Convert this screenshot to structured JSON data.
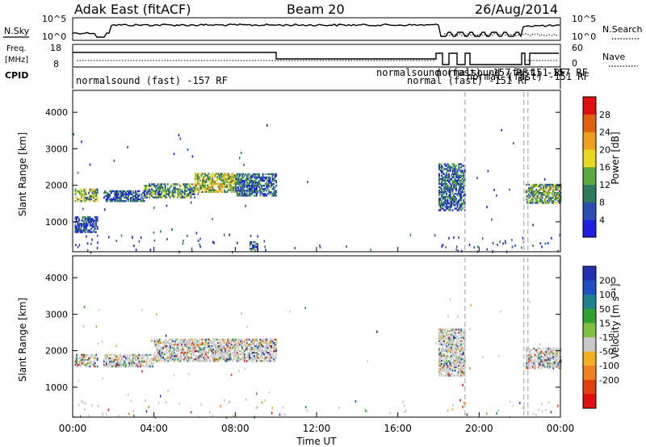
{
  "header": {
    "station": "Adak East (fitACF)",
    "beam": "Beam 20",
    "date": "26/Aug/2014"
  },
  "status_panel": {
    "nsky_label": "N.Sky",
    "nsky_ticks": [
      "10^5",
      "10^0"
    ],
    "nsearch_label": "N.Search",
    "nsearch_ticks": [
      "10^5",
      "10^0"
    ],
    "freq_label": "Freq.",
    "freq_unit": "[MHz]",
    "freq_ticks": [
      "18",
      "8"
    ],
    "nave_label": "Nave",
    "nave_ticks": [
      "60",
      "0"
    ],
    "cpid_label": "CPID",
    "cpid_texts": [
      "normalsound (fast) -157 RF",
      "normalsound (fast) -157 RF",
      "normal (fast) -151 RF",
      "normal (fast) -151 RF",
      "normalsound (fast) -157 RF",
      "-151 RF"
    ]
  },
  "chart_data": [
    {
      "type": "heatmap",
      "panel": "power",
      "ylabel": "Slant Range [km]",
      "colorbar_label": "Power [dB]",
      "x_ticks": [
        "00:00",
        "04:00",
        "08:00",
        "12:00",
        "16:00",
        "20:00",
        "00:00"
      ],
      "y_ticks": [
        "1000",
        "2000",
        "3000",
        "4000"
      ],
      "ylim": [
        180,
        4600
      ],
      "xlim_hours": [
        0,
        24
      ],
      "colorbar_ticks": [
        "4",
        "8",
        "12",
        "16",
        "20",
        "24",
        "28"
      ],
      "colorbar_colors": [
        "#1f1fe0",
        "#2a4fb0",
        "#2e7a5a",
        "#5aa840",
        "#e8d820",
        "#f0a020",
        "#e06010",
        "#e01010"
      ],
      "echo_bands": [
        {
          "t0": 0.1,
          "t1": 1.2,
          "r0": 1550,
          "r1": 1900,
          "level": 0.45
        },
        {
          "t0": 0.1,
          "t1": 1.2,
          "r0": 700,
          "r1": 1150,
          "level": 0.15
        },
        {
          "t0": 1.5,
          "t1": 3.5,
          "r0": 1550,
          "r1": 1850,
          "level": 0.2
        },
        {
          "t0": 3.5,
          "t1": 6.0,
          "r0": 1650,
          "r1": 2050,
          "level": 0.35
        },
        {
          "t0": 6.0,
          "t1": 8.0,
          "r0": 1800,
          "r1": 2300,
          "level": 0.5
        },
        {
          "t0": 8.0,
          "t1": 10.0,
          "r0": 1700,
          "r1": 2300,
          "level": 0.25
        },
        {
          "t0": 8.7,
          "t1": 9.1,
          "r0": 200,
          "r1": 450,
          "level": 0.2
        },
        {
          "t0": 18.0,
          "t1": 19.3,
          "r0": 1300,
          "r1": 2600,
          "level": 0.25
        },
        {
          "t0": 22.3,
          "t1": 24.0,
          "r0": 1500,
          "r1": 2000,
          "level": 0.4
        }
      ]
    },
    {
      "type": "heatmap",
      "panel": "velocity",
      "ylabel": "Slant Range [km]",
      "xlabel": "Time UT",
      "colorbar_label": "Velocity [m s⁻¹]",
      "x_ticks": [
        "00:00",
        "04:00",
        "08:00",
        "12:00",
        "16:00",
        "20:00",
        "00:00"
      ],
      "y_ticks": [
        "1000",
        "2000",
        "3000",
        "4000"
      ],
      "ylim": [
        180,
        4600
      ],
      "colorbar_ticks": [
        "200",
        "100",
        "50",
        "15",
        "-15",
        "-50",
        "-100",
        "-200"
      ],
      "colorbar_colors": [
        "#2030b0",
        "#2050c0",
        "#208090",
        "#30a030",
        "#80c040",
        "#c8c8c8",
        "#f0b020",
        "#f08020",
        "#e04010",
        "#e01010"
      ],
      "echo_bands": [
        {
          "t0": 0.1,
          "t1": 1.2,
          "r0": 1550,
          "r1": 1900,
          "level": 0.5
        },
        {
          "t0": 1.5,
          "t1": 4.0,
          "r0": 1550,
          "r1": 1900,
          "level": 0.5
        },
        {
          "t0": 4.0,
          "t1": 8.0,
          "r0": 1700,
          "r1": 2300,
          "level": 0.5
        },
        {
          "t0": 8.0,
          "t1": 10.0,
          "r0": 1700,
          "r1": 2300,
          "level": 0.55
        },
        {
          "t0": 18.0,
          "t1": 19.3,
          "r0": 1300,
          "r1": 2600,
          "level": 0.5
        },
        {
          "t0": 22.3,
          "t1": 24.0,
          "r0": 1500,
          "r1": 2050,
          "level": 0.5
        }
      ]
    }
  ]
}
